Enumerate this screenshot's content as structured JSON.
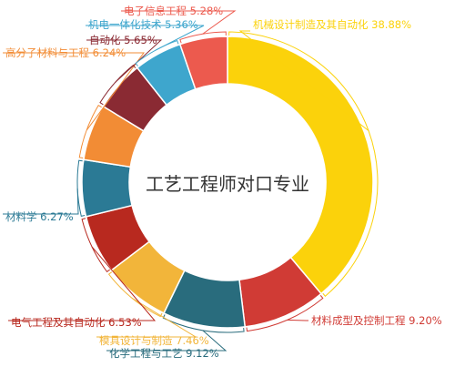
{
  "chart_data": {
    "type": "pie",
    "variant": "donut",
    "title": "工艺工程师对口专业",
    "value_unit": "%",
    "legend": "none",
    "slices": [
      {
        "label": "机械设计制造及其自动化",
        "value": 38.88,
        "display": "机械设计制造及其自动化 38.88%",
        "color": "#fbd20b"
      },
      {
        "label": "材料成型及控制工程",
        "value": 9.2,
        "display": "材料成型及控制工程 9.20%",
        "color": "#d03b35"
      },
      {
        "label": "化学工程与工艺",
        "value": 9.12,
        "display": "化学工程与工艺 9.12%",
        "color": "#296c7d"
      },
      {
        "label": "模具设计与制造",
        "value": 7.46,
        "display": "模具设计与制造 7.46%",
        "color": "#f2b53a"
      },
      {
        "label": "电气工程及其自动化",
        "value": 6.53,
        "display": "电气工程及其自动化 6.53%",
        "color": "#b8291f"
      },
      {
        "label": "材料学",
        "value": 6.27,
        "display": "材料学 6.27%",
        "color": "#2b7a95"
      },
      {
        "label": "高分子材料与工程",
        "value": 6.24,
        "display": "高分子材料与工程 6.24%",
        "color": "#f28c35"
      },
      {
        "label": "自动化",
        "value": 5.65,
        "display": "自动化 5.65%",
        "color": "#8a2a33"
      },
      {
        "label": "机电一体化技术",
        "value": 5.36,
        "display": "机电一体化技术 5.36%",
        "color": "#3ea6cd"
      },
      {
        "label": "电子信息工程",
        "value": 5.28,
        "display": "电子信息工程 5.28%",
        "color": "#ec5a4e"
      }
    ]
  }
}
